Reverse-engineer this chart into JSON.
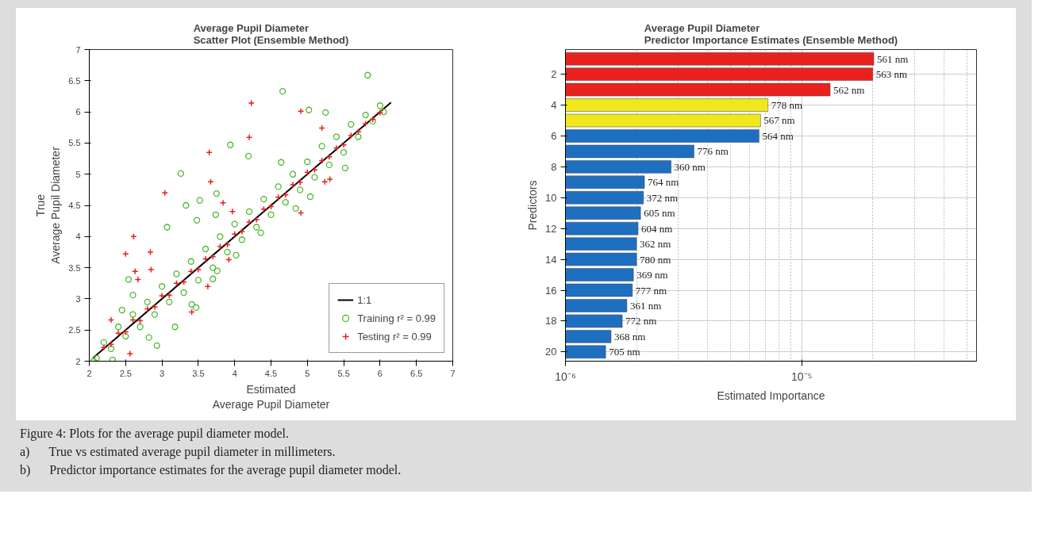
{
  "chart_data": [
    {
      "type": "scatter",
      "title": "Average Pupil Diameter\nScatter Plot (Ensemble Method)",
      "xlabel": "Estimated\nAverage Pupil Diameter",
      "ylabel": "True\nAverage Pupil Diameter",
      "xlim": [
        2,
        7
      ],
      "ylim": [
        2,
        7
      ],
      "xticks": [
        2,
        2.5,
        3,
        3.5,
        4,
        4.5,
        5,
        5.5,
        6,
        6.5,
        7
      ],
      "yticks": [
        2,
        2.5,
        3,
        3.5,
        4,
        4.5,
        5,
        5.5,
        6,
        6.5,
        7
      ],
      "grid": false,
      "legend": "bottom right",
      "series": [
        {
          "name": "1:1",
          "type": "line",
          "color": "#000000",
          "line_style": "solid",
          "x": [
            2.05,
            6.15
          ],
          "values": [
            2.05,
            6.15
          ]
        },
        {
          "name": "Training r² = 0.99",
          "type": "scatter",
          "marker": "circle",
          "color": "#4db82e",
          "x": [
            2.1,
            2.2,
            2.3,
            2.4,
            2.5,
            2.6,
            2.7,
            2.8,
            2.9,
            3.0,
            3.1,
            3.2,
            3.3,
            3.4,
            3.5,
            3.6,
            3.7,
            3.8,
            3.9,
            4.0,
            4.1,
            4.2,
            4.3,
            4.4,
            4.5,
            4.6,
            4.7,
            4.8,
            4.9,
            5.0,
            5.1,
            5.2,
            5.3,
            5.4,
            5.5,
            5.6,
            5.7,
            5.8,
            5.9,
            6.0,
            6.05,
            5.83,
            4.66,
            5.02,
            5.25,
            3.94,
            3.26,
            4.19,
            4.64,
            5.52,
            2.54,
            3.75,
            3.33,
            3.52,
            3.07,
            3.48,
            3.74,
            3.7,
            3.76,
            3.41,
            3.47,
            3.18,
            2.93,
            2.32,
            2.06,
            5.04,
            4.84,
            4.36,
            4.02,
            2.82,
            2.45,
            2.6
          ],
          "values": [
            2.05,
            2.3,
            2.2,
            2.55,
            2.4,
            2.75,
            2.55,
            2.95,
            2.75,
            3.2,
            2.95,
            3.4,
            3.1,
            3.6,
            3.3,
            3.8,
            3.5,
            4.0,
            3.75,
            4.2,
            3.95,
            4.4,
            4.15,
            4.6,
            4.35,
            4.8,
            4.55,
            5.0,
            4.75,
            5.2,
            4.95,
            5.45,
            5.15,
            5.6,
            5.35,
            5.8,
            5.6,
            5.95,
            5.85,
            6.1,
            6.0,
            6.59,
            6.33,
            6.03,
            5.99,
            5.47,
            5.01,
            5.29,
            5.19,
            5.1,
            3.31,
            4.69,
            4.5,
            4.58,
            4.15,
            4.26,
            4.35,
            3.32,
            3.45,
            2.91,
            2.86,
            2.55,
            2.25,
            2.02,
            2.0,
            4.64,
            4.45,
            4.06,
            3.7,
            2.38,
            2.82,
            3.06
          ]
        },
        {
          "name": "Testing r² = 0.99",
          "type": "scatter",
          "marker": "cross",
          "color": "#e8221f",
          "x": [
            2.2,
            2.3,
            2.4,
            2.5,
            2.6,
            2.7,
            2.8,
            2.9,
            3.0,
            3.1,
            3.2,
            3.3,
            3.4,
            3.5,
            3.6,
            3.7,
            3.8,
            3.9,
            4.0,
            4.1,
            4.2,
            4.3,
            4.4,
            4.5,
            4.6,
            4.7,
            4.8,
            4.9,
            5.0,
            5.1,
            5.2,
            5.3,
            5.4,
            5.5,
            5.6,
            5.7,
            5.8,
            5.9,
            6.0,
            4.23,
            4.91,
            4.2,
            3.65,
            3.67,
            3.04,
            2.61,
            2.5,
            2.84,
            2.63,
            2.85,
            2.67,
            2.3,
            3.84,
            3.97,
            4.91,
            5.24,
            5.31,
            3.92,
            3.41,
            2.56,
            3.63,
            5.2
          ],
          "values": [
            2.22,
            2.27,
            2.45,
            2.47,
            2.66,
            2.65,
            2.84,
            2.87,
            3.05,
            3.06,
            3.25,
            3.27,
            3.44,
            3.47,
            3.64,
            3.68,
            3.84,
            3.87,
            4.04,
            4.08,
            4.23,
            4.27,
            4.44,
            4.48,
            4.63,
            4.67,
            4.83,
            4.87,
            5.03,
            5.07,
            5.22,
            5.28,
            5.42,
            5.47,
            5.62,
            5.68,
            5.81,
            5.88,
            5.99,
            6.14,
            6.01,
            5.59,
            5.35,
            4.88,
            4.7,
            4.0,
            3.72,
            3.75,
            3.44,
            3.47,
            3.31,
            2.66,
            4.54,
            4.4,
            4.38,
            4.88,
            4.92,
            3.63,
            2.79,
            2.12,
            3.2,
            5.74
          ]
        }
      ],
      "annotations": [
        "Figure 4: Plots for the average pupil diameter model.",
        "a)\tTrue vs estimated average pupil diameter in millimeters."
      ]
    },
    {
      "type": "bar",
      "orientation": "horizontal",
      "log": "x",
      "title": "Average Pupil Diameter\nPredictor Importance Estimates (Ensemble Method)",
      "xlabel": "Estimated Importance",
      "ylabel": "Predictors",
      "categories": [
        null,
        "2",
        null,
        "4",
        null,
        "6",
        null,
        "8",
        null,
        "10",
        null,
        "12",
        null,
        "14",
        null,
        "16",
        null,
        "18",
        null,
        "20"
      ],
      "series": [
        {
          "name": "561 nm",
          "color": "#e8221f",
          "values": [
            2.02e-05,
            null,
            null,
            null,
            null,
            null,
            null,
            null,
            null,
            null,
            null,
            null,
            null,
            null,
            null,
            null,
            null,
            null,
            null,
            null
          ]
        },
        {
          "name": "563 nm",
          "color": "#e8221f",
          "values": [
            null,
            2e-05,
            null,
            null,
            null,
            null,
            null,
            null,
            null,
            null,
            null,
            null,
            null,
            null,
            null,
            null,
            null,
            null,
            null,
            null
          ]
        },
        {
          "name": "562 nm",
          "color": "#e8221f",
          "values": [
            null,
            null,
            1.32e-05,
            null,
            null,
            null,
            null,
            null,
            null,
            null,
            null,
            null,
            null,
            null,
            null,
            null,
            null,
            null,
            null,
            null
          ]
        },
        {
          "name": "778 nm",
          "color": "#f0e81c",
          "values": [
            null,
            null,
            null,
            7.2e-06,
            null,
            null,
            null,
            null,
            null,
            null,
            null,
            null,
            null,
            null,
            null,
            null,
            null,
            null,
            null,
            null
          ]
        },
        {
          "name": "567 nm",
          "color": "#f0e81c",
          "values": [
            null,
            null,
            null,
            null,
            6.7e-06,
            null,
            null,
            null,
            null,
            null,
            null,
            null,
            null,
            null,
            null,
            null,
            null,
            null,
            null,
            null
          ]
        },
        {
          "name": "564 nm",
          "color": "#1f6fc0",
          "values": [
            null,
            null,
            null,
            null,
            null,
            6.6e-06,
            null,
            null,
            null,
            null,
            null,
            null,
            null,
            null,
            null,
            null,
            null,
            null,
            null,
            null
          ]
        },
        {
          "name": "776 nm",
          "color": "#1f6fc0",
          "values": [
            null,
            null,
            null,
            null,
            null,
            null,
            3.5e-06,
            null,
            null,
            null,
            null,
            null,
            null,
            null,
            null,
            null,
            null,
            null,
            null,
            null
          ]
        },
        {
          "name": "360 nm",
          "color": "#1f6fc0",
          "values": [
            null,
            null,
            null,
            null,
            null,
            null,
            null,
            2.8e-06,
            null,
            null,
            null,
            null,
            null,
            null,
            null,
            null,
            null,
            null,
            null,
            null
          ]
        },
        {
          "name": "764 nm",
          "color": "#1f6fc0",
          "values": [
            null,
            null,
            null,
            null,
            null,
            null,
            null,
            null,
            2.16e-06,
            null,
            null,
            null,
            null,
            null,
            null,
            null,
            null,
            null,
            null,
            null
          ]
        },
        {
          "name": "372 nm",
          "color": "#1f6fc0",
          "values": [
            null,
            null,
            null,
            null,
            null,
            null,
            null,
            null,
            null,
            2.14e-06,
            null,
            null,
            null,
            null,
            null,
            null,
            null,
            null,
            null,
            null
          ]
        },
        {
          "name": "605 nm",
          "color": "#1f6fc0",
          "values": [
            null,
            null,
            null,
            null,
            null,
            null,
            null,
            null,
            null,
            null,
            2.08e-06,
            null,
            null,
            null,
            null,
            null,
            null,
            null,
            null,
            null
          ]
        },
        {
          "name": "604 nm",
          "color": "#1f6fc0",
          "values": [
            null,
            null,
            null,
            null,
            null,
            null,
            null,
            null,
            null,
            null,
            null,
            2.03e-06,
            null,
            null,
            null,
            null,
            null,
            null,
            null,
            null
          ]
        },
        {
          "name": "362 nm",
          "color": "#1f6fc0",
          "values": [
            null,
            null,
            null,
            null,
            null,
            null,
            null,
            null,
            null,
            null,
            null,
            null,
            2e-06,
            null,
            null,
            null,
            null,
            null,
            null,
            null
          ]
        },
        {
          "name": "780 nm",
          "color": "#1f6fc0",
          "values": [
            null,
            null,
            null,
            null,
            null,
            null,
            null,
            null,
            null,
            null,
            null,
            null,
            null,
            2e-06,
            null,
            null,
            null,
            null,
            null,
            null
          ]
        },
        {
          "name": "369 nm",
          "color": "#1f6fc0",
          "values": [
            null,
            null,
            null,
            null,
            null,
            null,
            null,
            null,
            null,
            null,
            null,
            null,
            null,
            null,
            1.94e-06,
            null,
            null,
            null,
            null,
            null
          ]
        },
        {
          "name": "777 nm",
          "color": "#1f6fc0",
          "values": [
            null,
            null,
            null,
            null,
            null,
            null,
            null,
            null,
            null,
            null,
            null,
            null,
            null,
            null,
            null,
            1.92e-06,
            null,
            null,
            null,
            null
          ]
        },
        {
          "name": "361 nm",
          "color": "#1f6fc0",
          "values": [
            null,
            null,
            null,
            null,
            null,
            null,
            null,
            null,
            null,
            null,
            null,
            null,
            null,
            null,
            null,
            null,
            1.82e-06,
            null,
            null,
            null
          ]
        },
        {
          "name": "772 nm",
          "color": "#1f6fc0",
          "values": [
            null,
            null,
            null,
            null,
            null,
            null,
            null,
            null,
            null,
            null,
            null,
            null,
            null,
            null,
            null,
            null,
            null,
            1.74e-06,
            null,
            null
          ]
        },
        {
          "name": "368 nm",
          "color": "#1f6fc0",
          "values": [
            null,
            null,
            null,
            null,
            null,
            null,
            null,
            null,
            null,
            null,
            null,
            null,
            null,
            null,
            null,
            null,
            null,
            null,
            1.56e-06,
            null
          ]
        },
        {
          "name": "705 nm",
          "color": "#1f6fc0",
          "values": [
            null,
            null,
            null,
            null,
            null,
            null,
            null,
            null,
            null,
            null,
            null,
            null,
            null,
            null,
            null,
            null,
            null,
            null,
            null,
            1.48e-06
          ]
        }
      ],
      "xlim": [
        1e-06,
        5.5e-05
      ],
      "xticks": [
        {
          "value": 1e-06,
          "label": "10⁻⁶"
        },
        {
          "value": 1e-05,
          "label": "10⁻⁵"
        }
      ],
      "grid": true,
      "annotations": [
        "b)\tPredictor importance estimates for the average pupil diameter model."
      ]
    }
  ]
}
